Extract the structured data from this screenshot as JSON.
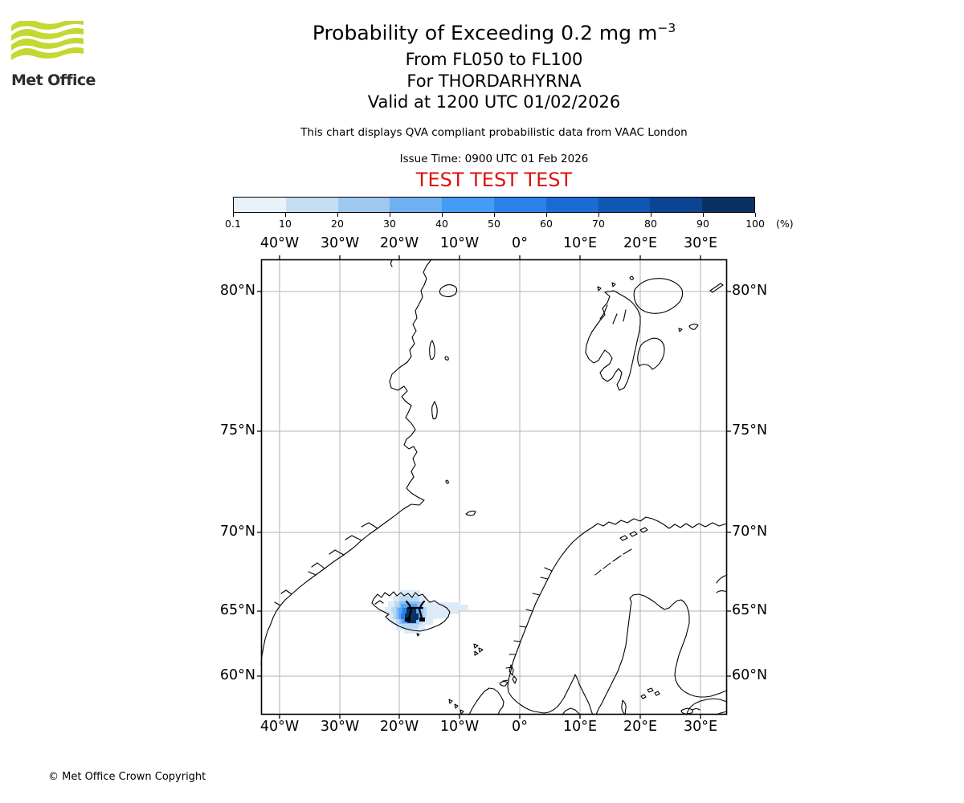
{
  "branding": {
    "logo_text": "Met Office",
    "logo_green": "#c3d831"
  },
  "header": {
    "title_main": "Probability of Exceeding 0.2 mg m",
    "title_exponent": "−3",
    "subtitle_flight_levels": "From FL050 to FL100",
    "subtitle_volcano": "For THORDARHYRNA",
    "subtitle_valid": "Valid at 1200 UTC 01/02/2026",
    "note": "This chart displays QVA compliant probabilistic data from VAAC London",
    "issue_time": "Issue Time: 0900 UTC 01 Feb 2026",
    "test_banner": "TEST TEST TEST",
    "test_banner_color": "#dd1111"
  },
  "colorbar": {
    "labels": [
      "0.1",
      "10",
      "20",
      "30",
      "40",
      "50",
      "60",
      "70",
      "80",
      "90",
      "100"
    ],
    "unit_label": "(%)",
    "colors": [
      "#e9f2fb",
      "#c7ddf4",
      "#9fc8ef",
      "#6fb0f3",
      "#459cf5",
      "#2b83e9",
      "#1a6bd3",
      "#0f57b3",
      "#0b4492",
      "#0a3162"
    ]
  },
  "map": {
    "lon_labels": [
      "40°W",
      "30°W",
      "20°W",
      "10°W",
      "0°",
      "10°E",
      "20°E",
      "30°E"
    ],
    "lat_labels": [
      "80°N",
      "75°N",
      "70°N",
      "65°N",
      "60°N"
    ],
    "grid_color": "#b3b3b3",
    "coast_color": "#000000"
  },
  "footer": {
    "copyright": "© Met Office Crown Copyright"
  },
  "chart_data": {
    "type": "heatmap",
    "title": "Probability of Exceeding 0.2 mg m−3",
    "subtitles": [
      "From FL050 to FL100",
      "For THORDARHYRNA",
      "Valid at 1200 UTC 01/02/2026"
    ],
    "source_note": "This chart displays QVA compliant probabilistic data from VAAC London",
    "issue_time": "0900 UTC 01 Feb 2026",
    "projection": "Mercator",
    "lon_range": [
      -43.1,
      34.5
    ],
    "lat_range": [
      56.9,
      81.0
    ],
    "x_ticks": [
      "40°W",
      "30°W",
      "20°W",
      "10°W",
      "0°",
      "10°E",
      "20°E",
      "30°E"
    ],
    "y_ticks": [
      "80°N",
      "75°N",
      "70°N",
      "65°N",
      "60°N"
    ],
    "grid": true,
    "legend_position": "top",
    "probability_levels_pct": [
      0.1,
      10,
      20,
      30,
      40,
      50,
      60,
      70,
      80,
      90,
      100
    ],
    "unit": "%",
    "volcano_marker": {
      "name": "THORDARHYRNA",
      "approx_lon": -17.8,
      "approx_lat": 64.4
    },
    "plume": {
      "description": "Gridded ash-exceedance probability cluster over central Iceland",
      "approx_center": {
        "lon": -19.3,
        "lat": 64.8
      },
      "approx_extent": {
        "west": -21.8,
        "east": -12.5,
        "south": 63.6,
        "north": 66.2
      },
      "max_probability_pct": 100
    }
  }
}
